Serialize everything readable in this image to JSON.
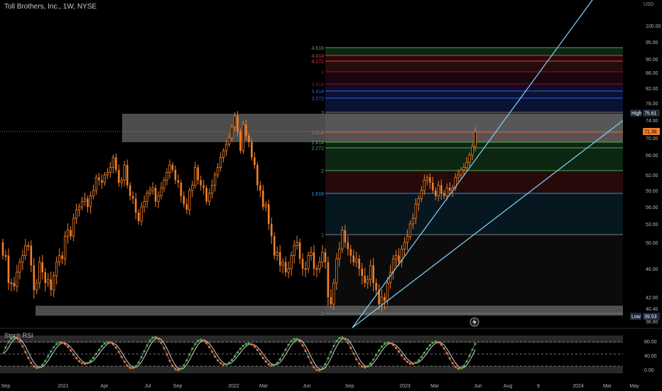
{
  "chart_title": "Toll Brothers, Inc., 1W, NYSE",
  "indicator_label": "Stoch RSI",
  "currency": "USD",
  "colors": {
    "background": "#000000",
    "candle": "#f07f29",
    "trendline": "#7ec8f2",
    "box_fill": "#8a8a8a",
    "price_label": "#f07f29",
    "stoch_k": "#4caf50",
    "stoch_d": "#e8e8e8",
    "stoch_bear_dot": "#f26b38"
  },
  "chart_data": {
    "type": "candlestick",
    "ylim": [
      36.5,
      105
    ],
    "y_ticks": [
      "100.00",
      "95.00",
      "90.00",
      "86.00",
      "82.00",
      "78.00",
      "74.00",
      "70.00",
      "66.00",
      "62.00",
      "59.00",
      "56.00",
      "53.00",
      "50.00",
      "46.00",
      "42.00",
      "40.40",
      "38.80"
    ],
    "x_ticks": [
      "Sep",
      "2021",
      "Apr",
      "Jul",
      "Sep",
      "2022",
      "Mar",
      "Jun",
      "Sep",
      "2023",
      "Mar",
      "Jun",
      "Aug",
      "9",
      "2024",
      "Mar",
      "May"
    ],
    "price_labels": [
      {
        "kind": "high",
        "text": "High",
        "value": "75.61"
      },
      {
        "kind": "last",
        "value": "71.36"
      },
      {
        "kind": "low",
        "text": "Low",
        "value": "39.53"
      }
    ],
    "fib_levels": [
      {
        "label": "4.618",
        "color": "#4caf50"
      },
      {
        "label": "4.414",
        "color": "#f23645"
      },
      {
        "label": "4.272",
        "color": "#f23645"
      },
      {
        "label": "4",
        "color": "#880e4f"
      },
      {
        "label": "3.618",
        "color": "#880e4f"
      },
      {
        "label": "3.414",
        "color": "#2962ff"
      },
      {
        "label": "3.272",
        "color": "#2962ff"
      },
      {
        "label": "3",
        "color": "#787b86"
      },
      {
        "label": "2.618",
        "color": "#f23645"
      },
      {
        "label": "2.414",
        "color": "#4caf50"
      },
      {
        "label": "2.272",
        "color": "#4caf50"
      },
      {
        "label": "2",
        "color": "#4caf50"
      },
      {
        "label": "1.618",
        "color": "#2196f3"
      },
      {
        "label": "1",
        "color": "#787b86"
      },
      {
        "label": "0",
        "color": "#787b86"
      }
    ],
    "stoch_ticks": [
      "80.00",
      "40.00",
      "0.00"
    ]
  }
}
